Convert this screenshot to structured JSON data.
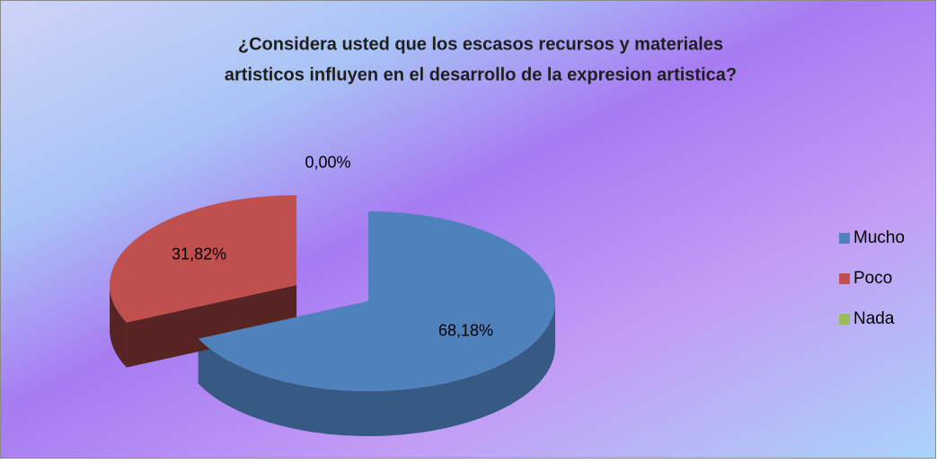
{
  "chart_data": {
    "type": "pie",
    "title": [
      "¿Considera usted que los escasos recursos y materiales",
      "artisticos influyen en el desarrollo de la expresion artistica?"
    ],
    "categories": [
      "Mucho",
      "Poco",
      "Nada"
    ],
    "values": [
      68.18,
      31.82,
      0
    ],
    "value_labels": [
      "68,18%",
      "31,82%",
      "0,00%"
    ],
    "colors": [
      "#4f81bd",
      "#c0504d",
      "#9bbb59"
    ],
    "legend": "right"
  }
}
